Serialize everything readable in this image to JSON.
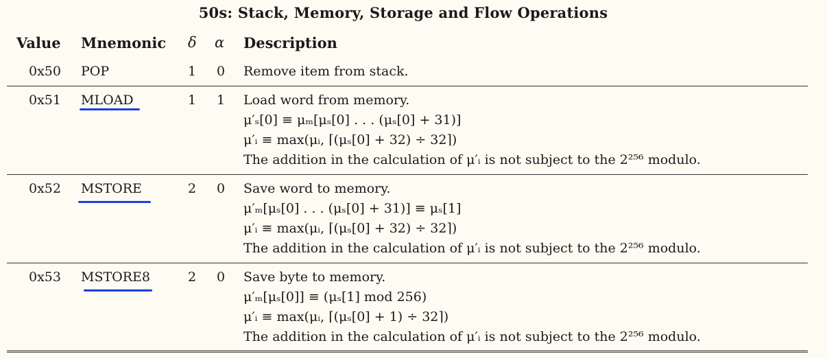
{
  "title": "50s: Stack, Memory, Storage and Flow Operations",
  "headers": {
    "value": "Value",
    "mnemonic": "Mnemonic",
    "delta": "δ",
    "alpha": "α",
    "description": "Description"
  },
  "rows": [
    {
      "value": "0x50",
      "mnemonic": "POP",
      "delta": "1",
      "alpha": "0",
      "lines": [
        "Remove item from stack."
      ],
      "highlighted": false
    },
    {
      "value": "0x51",
      "mnemonic": "MLOAD",
      "delta": "1",
      "alpha": "1",
      "lines": [
        "Load word from memory.",
        "μ′ₛ[0] ≡ μₘ[μₛ[0] . . . (μₛ[0] + 31)]",
        "μ′ᵢ ≡ max(μᵢ, ⌈(μₛ[0] + 32) ÷ 32⌉)",
        "The addition in the calculation of μ′ᵢ is not subject to the 2²⁵⁶ modulo."
      ],
      "highlighted": true
    },
    {
      "value": "0x52",
      "mnemonic": "MSTORE",
      "delta": "2",
      "alpha": "0",
      "lines": [
        "Save word to memory.",
        "μ′ₘ[μₛ[0] . . . (μₛ[0] + 31)] ≡ μₛ[1]",
        "μ′ᵢ ≡ max(μᵢ, ⌈(μₛ[0] + 32) ÷ 32⌉)",
        "The addition in the calculation of μ′ᵢ is not subject to the 2²⁵⁶ modulo."
      ],
      "highlighted": true
    },
    {
      "value": "0x53",
      "mnemonic": "MSTORE8",
      "delta": "2",
      "alpha": "0",
      "lines": [
        "Save byte to memory.",
        "μ′ₘ[μₛ[0]] ≡ (μₛ[1] mod 256)",
        "μ′ᵢ ≡ max(μᵢ, ⌈(μₛ[0] + 1) ÷ 32⌉)",
        "The addition in the calculation of μ′ᵢ is not subject to the 2²⁵⁶ modulo."
      ],
      "highlighted": true
    }
  ],
  "colors": {
    "underline": "#1a3ee0",
    "background": "#fdfbf2"
  }
}
